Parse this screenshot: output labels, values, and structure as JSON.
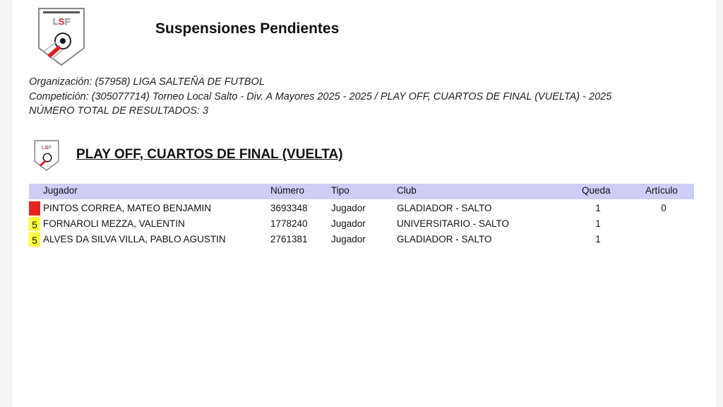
{
  "header": {
    "title": "Suspensiones Pendientes",
    "logo_text": "LSF",
    "logo_caption": "LIGA SALTEÑA DE FUTBOL"
  },
  "meta": {
    "organizacion": "Organización: (57958) LIGA SALTEÑA DE FUTBOL",
    "competicion": "Competición: (305077714) Torneo Local Salto - Div.  A Mayores 2025 - 2025 / PLAY OFF, CUARTOS DE FINAL (VUELTA) - 2025",
    "total": "NÚMERO TOTAL DE RESULTADOS: 3"
  },
  "section": {
    "title": "PLAY OFF, CUARTOS DE FINAL (VUELTA)"
  },
  "table": {
    "columns": [
      "Jugador",
      "Número",
      "Tipo",
      "Club",
      "Queda",
      "Artículo"
    ],
    "rows": [
      {
        "marker": "",
        "marker_color": "#e8231e",
        "jugador": "PINTOS CORREA, MATEO BENJAMIN",
        "numero": "3693348",
        "tipo": "Jugador",
        "club": "GLADIADOR - SALTO",
        "queda": "1",
        "articulo": "0"
      },
      {
        "marker": "5",
        "marker_color": "#ffff33",
        "jugador": "FORNAROLI MEZZA, VALENTIN",
        "numero": "1778240",
        "tipo": "Jugador",
        "club": "UNIVERSITARIO - SALTO",
        "queda": "1",
        "articulo": ""
      },
      {
        "marker": "5",
        "marker_color": "#ffff33",
        "jugador": "ALVES DA SILVA VILLA, PABLO AGUSTIN",
        "numero": "2761381",
        "tipo": "Jugador",
        "club": "GLADIADOR - SALTO",
        "queda": "1",
        "articulo": ""
      }
    ]
  }
}
